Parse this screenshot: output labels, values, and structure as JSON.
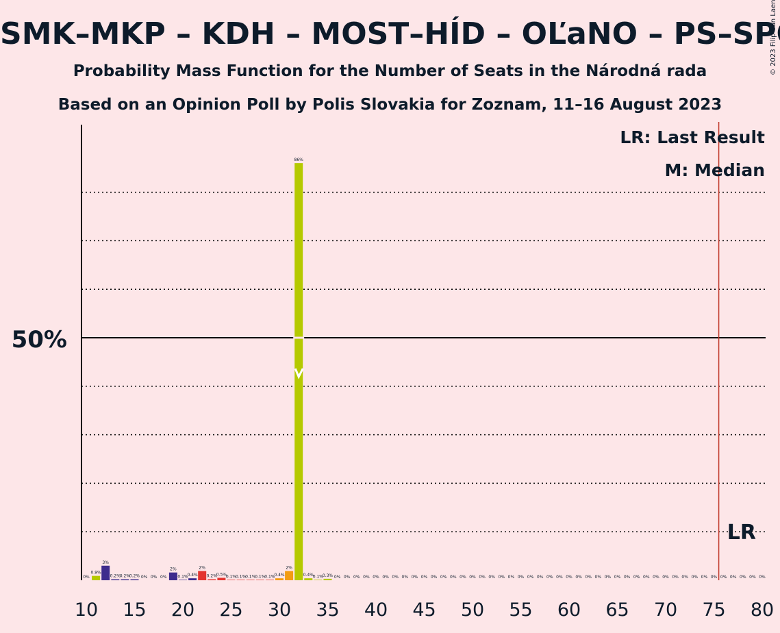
{
  "title": "SMK–MKP – KDH – MOST–HÍD – OĽaNO – PS–SPOLU",
  "subtitle": "Probability Mass Function for the Number of Seats in the Národná rada",
  "source": "Based on an Opinion Poll by Polis Slovakia for Zoznam, 11–16 August 2023",
  "copyright": "© 2023 Filip van Laenen",
  "legend": {
    "last_result": "LR: Last Result",
    "median": "M: Median"
  },
  "lr_label": "LR",
  "colors": {
    "background": "#fde6e8",
    "median_party": "#b5c900",
    "lr_line": "#c0392b"
  },
  "chart_data": {
    "type": "bar",
    "x_ticks": [
      "10",
      "15",
      "20",
      "25",
      "30",
      "35",
      "40",
      "45",
      "50",
      "55",
      "60",
      "65",
      "70",
      "75",
      "80"
    ],
    "y_label_50": "50%",
    "xlim": [
      10,
      80
    ],
    "ylim": [
      0,
      94
    ],
    "grid": "dotted every 10%, solid at 50%",
    "last_result": 76,
    "median": 32,
    "bars": [
      {
        "x": 10,
        "value": 0,
        "label": "0%",
        "color": "#7a7a7a"
      },
      {
        "x": 11,
        "value": 0.9,
        "label": "0.9%",
        "color": "#b5c900"
      },
      {
        "x": 12,
        "value": 3,
        "label": "3%",
        "color": "#3d2c8d"
      },
      {
        "x": 13,
        "value": 0.2,
        "label": "0.2%",
        "color": "#3d2c8d"
      },
      {
        "x": 14,
        "value": 0.2,
        "label": "0.2%",
        "color": "#3d2c8d"
      },
      {
        "x": 15,
        "value": 0.2,
        "label": "0.2%",
        "color": "#3d2c8d"
      },
      {
        "x": 16,
        "value": 0,
        "label": "0%",
        "color": "#3d2c8d"
      },
      {
        "x": 17,
        "value": 0,
        "label": "0%",
        "color": "#3d2c8d"
      },
      {
        "x": 18,
        "value": 0,
        "label": "0%",
        "color": "#3d2c8d"
      },
      {
        "x": 19,
        "value": 1.6,
        "label": "2%",
        "color": "#3d2c8d"
      },
      {
        "x": 20,
        "value": 0.1,
        "label": "0.1%",
        "color": "#3d2c8d"
      },
      {
        "x": 21,
        "value": 0.4,
        "label": "0.4%",
        "color": "#3d2c8d"
      },
      {
        "x": 22,
        "value": 1.9,
        "label": "2%",
        "color": "#e3342f"
      },
      {
        "x": 23,
        "value": 0.2,
        "label": "0.2%",
        "color": "#e3342f"
      },
      {
        "x": 24,
        "value": 0.5,
        "label": "0.5%",
        "color": "#e3342f"
      },
      {
        "x": 25,
        "value": 0.1,
        "label": "0.1%",
        "color": "#e3342f"
      },
      {
        "x": 26,
        "value": 0.1,
        "label": "0.1%",
        "color": "#e3342f"
      },
      {
        "x": 27,
        "value": 0.1,
        "label": "0.1%",
        "color": "#e3342f"
      },
      {
        "x": 28,
        "value": 0.1,
        "label": "0.1%",
        "color": "#e3342f"
      },
      {
        "x": 29,
        "value": 0.1,
        "label": "0.1%",
        "color": "#e3342f"
      },
      {
        "x": 30,
        "value": 0.4,
        "label": "0.4%",
        "color": "#f39c12"
      },
      {
        "x": 31,
        "value": 1.9,
        "label": "2%",
        "color": "#f39c12"
      },
      {
        "x": 32,
        "value": 86,
        "label": "86%",
        "color": "#b5c900"
      },
      {
        "x": 33,
        "value": 0.4,
        "label": "0.4%",
        "color": "#b5c900"
      },
      {
        "x": 34,
        "value": 0.1,
        "label": "0.1%",
        "color": "#b5c900"
      },
      {
        "x": 35,
        "value": 0.3,
        "label": "0.3%",
        "color": "#b5c900"
      },
      {
        "x": 36,
        "value": 0,
        "label": "0%",
        "color": "#b5c900"
      },
      {
        "x": 37,
        "value": 0,
        "label": "0%",
        "color": "#b5c900"
      },
      {
        "x": 38,
        "value": 0,
        "label": "0%",
        "color": "#b5c900"
      },
      {
        "x": 39,
        "value": 0,
        "label": "0%",
        "color": "#b5c900"
      },
      {
        "x": 40,
        "value": 0,
        "label": "0%",
        "color": "#b5c900"
      },
      {
        "x": 41,
        "value": 0,
        "label": "0%",
        "color": "#b5c900"
      },
      {
        "x": 42,
        "value": 0,
        "label": "0%",
        "color": "#b5c900"
      },
      {
        "x": 43,
        "value": 0,
        "label": "0%",
        "color": "#b5c900"
      },
      {
        "x": 44,
        "value": 0,
        "label": "0%",
        "color": "#b5c900"
      },
      {
        "x": 45,
        "value": 0,
        "label": "0%",
        "color": "#b5c900"
      },
      {
        "x": 46,
        "value": 0,
        "label": "0%",
        "color": "#b5c900"
      },
      {
        "x": 47,
        "value": 0,
        "label": "0%",
        "color": "#b5c900"
      },
      {
        "x": 48,
        "value": 0,
        "label": "0%",
        "color": "#b5c900"
      },
      {
        "x": 49,
        "value": 0,
        "label": "0%",
        "color": "#b5c900"
      },
      {
        "x": 50,
        "value": 0,
        "label": "0%",
        "color": "#b5c900"
      },
      {
        "x": 51,
        "value": 0,
        "label": "0%",
        "color": "#b5c900"
      },
      {
        "x": 52,
        "value": 0,
        "label": "0%",
        "color": "#b5c900"
      },
      {
        "x": 53,
        "value": 0,
        "label": "0%",
        "color": "#b5c900"
      },
      {
        "x": 54,
        "value": 0,
        "label": "0%",
        "color": "#b5c900"
      },
      {
        "x": 55,
        "value": 0,
        "label": "0%",
        "color": "#b5c900"
      },
      {
        "x": 56,
        "value": 0,
        "label": "0%",
        "color": "#b5c900"
      },
      {
        "x": 57,
        "value": 0,
        "label": "0%",
        "color": "#b5c900"
      },
      {
        "x": 58,
        "value": 0,
        "label": "0%",
        "color": "#b5c900"
      },
      {
        "x": 59,
        "value": 0,
        "label": "0%",
        "color": "#b5c900"
      },
      {
        "x": 60,
        "value": 0,
        "label": "0%",
        "color": "#b5c900"
      },
      {
        "x": 61,
        "value": 0,
        "label": "0%",
        "color": "#b5c900"
      },
      {
        "x": 62,
        "value": 0,
        "label": "0%",
        "color": "#b5c900"
      },
      {
        "x": 63,
        "value": 0,
        "label": "0%",
        "color": "#b5c900"
      },
      {
        "x": 64,
        "value": 0,
        "label": "0%",
        "color": "#b5c900"
      },
      {
        "x": 65,
        "value": 0,
        "label": "0%",
        "color": "#b5c900"
      },
      {
        "x": 66,
        "value": 0,
        "label": "0%",
        "color": "#b5c900"
      },
      {
        "x": 67,
        "value": 0,
        "label": "0%",
        "color": "#b5c900"
      },
      {
        "x": 68,
        "value": 0,
        "label": "0%",
        "color": "#b5c900"
      },
      {
        "x": 69,
        "value": 0,
        "label": "0%",
        "color": "#b5c900"
      },
      {
        "x": 70,
        "value": 0,
        "label": "0%",
        "color": "#b5c900"
      },
      {
        "x": 71,
        "value": 0,
        "label": "0%",
        "color": "#b5c900"
      },
      {
        "x": 72,
        "value": 0,
        "label": "0%",
        "color": "#b5c900"
      },
      {
        "x": 73,
        "value": 0,
        "label": "0%",
        "color": "#b5c900"
      },
      {
        "x": 74,
        "value": 0,
        "label": "0%",
        "color": "#b5c900"
      },
      {
        "x": 75,
        "value": 0,
        "label": "0%",
        "color": "#b5c900"
      },
      {
        "x": 76,
        "value": 0,
        "label": "0%",
        "color": "#b5c900"
      },
      {
        "x": 77,
        "value": 0,
        "label": "0%",
        "color": "#b5c900"
      },
      {
        "x": 78,
        "value": 0,
        "label": "0%",
        "color": "#b5c900"
      },
      {
        "x": 79,
        "value": 0,
        "label": "0%",
        "color": "#b5c900"
      },
      {
        "x": 80,
        "value": 0,
        "label": "0%",
        "color": "#b5c900"
      }
    ]
  }
}
